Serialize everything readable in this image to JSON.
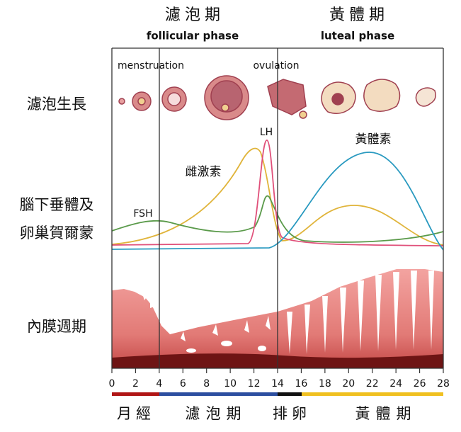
{
  "header": {
    "follicular": {
      "zh": "濾泡期",
      "en": "follicular phase"
    },
    "luteal": {
      "zh": "黃體期",
      "en": "luteal phase"
    }
  },
  "row_labels": [
    "濾泡生長",
    "腦下垂體及",
    "卵巢賀爾蒙",
    "內膜週期"
  ],
  "annotations": {
    "menstruation": "menstruation",
    "ovulation": "ovulation",
    "lh": "LH",
    "progesterone": "黃體素",
    "estrogen": "雌激素",
    "fsh": "FSH"
  },
  "day_ticks": [
    0,
    2,
    4,
    6,
    8,
    10,
    12,
    14,
    16,
    18,
    20,
    22,
    24,
    26,
    28
  ],
  "phases": [
    "月經",
    "濾泡期",
    "排卵",
    "黃體期"
  ]
}
